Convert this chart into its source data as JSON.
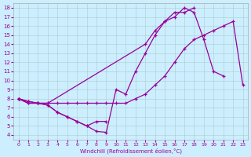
{
  "bg_color": "#cceeff",
  "line_color": "#990099",
  "xlabel": "Windchill (Refroidissement éolien,°C)",
  "xlim": [
    -0.5,
    23.5
  ],
  "ylim": [
    3.5,
    18.5
  ],
  "xticks": [
    0,
    1,
    2,
    3,
    4,
    5,
    6,
    7,
    8,
    9,
    10,
    11,
    12,
    13,
    14,
    15,
    16,
    17,
    18,
    19,
    20,
    21,
    22,
    23
  ],
  "yticks": [
    4,
    5,
    6,
    7,
    8,
    9,
    10,
    11,
    12,
    13,
    14,
    15,
    16,
    17,
    18
  ],
  "line1_x": [
    0,
    1,
    2,
    3,
    4,
    5,
    6,
    7,
    8,
    9,
    10,
    11,
    12,
    13,
    14,
    15,
    16,
    17,
    18,
    19,
    20,
    21
  ],
  "line1_y": [
    8.0,
    7.7,
    7.5,
    7.3,
    6.5,
    6.0,
    5.5,
    5.0,
    4.4,
    4.3,
    9.0,
    8.5,
    11.0,
    13.0,
    15.0,
    16.5,
    17.0,
    18.0,
    17.5,
    14.5,
    11.0,
    10.5
  ],
  "line2_x": [
    0,
    1,
    2,
    3,
    4,
    5,
    6,
    7,
    8,
    9,
    10,
    11,
    12,
    13,
    14,
    15,
    16,
    17,
    18,
    19,
    20,
    21,
    22,
    23
  ],
  "line2_y": [
    8.0,
    7.5,
    7.5,
    7.5,
    7.5,
    7.5,
    7.5,
    7.5,
    7.5,
    7.5,
    7.5,
    7.5,
    8.0,
    8.5,
    9.5,
    10.5,
    12.0,
    13.5,
    14.5,
    15.0,
    15.5,
    16.0,
    16.5,
    9.5
  ],
  "line3_x": [
    0,
    1,
    2,
    3,
    13,
    14,
    15,
    16,
    17,
    18
  ],
  "line3_y": [
    8.0,
    7.5,
    7.5,
    7.5,
    14.0,
    15.5,
    16.5,
    17.5,
    17.5,
    18.0
  ],
  "line4_x": [
    0,
    1,
    2,
    3,
    4,
    5,
    6,
    7,
    8,
    9
  ],
  "line4_y": [
    8.0,
    7.7,
    7.5,
    7.3,
    6.5,
    6.0,
    5.5,
    5.0,
    5.5,
    5.5
  ]
}
